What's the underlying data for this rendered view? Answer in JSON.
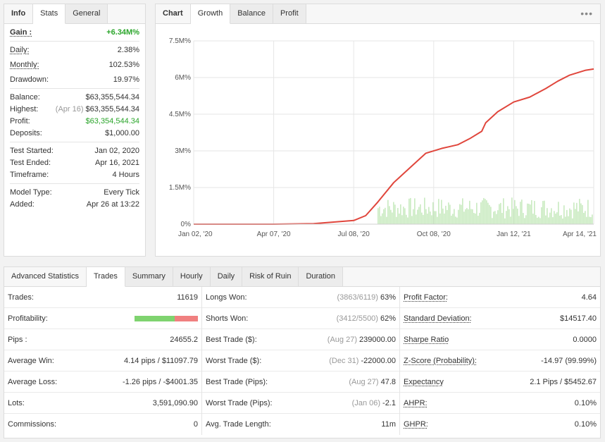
{
  "info": {
    "tabs": [
      "Info",
      "Stats",
      "General"
    ],
    "gain": {
      "label": "Gain :",
      "value": "+6.34M%"
    },
    "daily": {
      "label": "Daily:",
      "value": "2.38%"
    },
    "monthly": {
      "label": "Monthly:",
      "value": "102.53%"
    },
    "drawdown": {
      "label": "Drawdown:",
      "value": "19.97%"
    },
    "balance": {
      "label": "Balance:",
      "value": "$63,355,544.34"
    },
    "highest": {
      "label": "Highest:",
      "date": "(Apr 16)",
      "value": "$63,355,544.34"
    },
    "profit": {
      "label": "Profit:",
      "value": "$63,354,544.34"
    },
    "deposits": {
      "label": "Deposits:",
      "value": "$1,000.00"
    },
    "test_started": {
      "label": "Test Started:",
      "value": "Jan 02, 2020"
    },
    "test_ended": {
      "label": "Test Ended:",
      "value": "Apr 16, 2021"
    },
    "timeframe": {
      "label": "Timeframe:",
      "value": "4 Hours"
    },
    "model_type": {
      "label": "Model Type:",
      "value": "Every Tick"
    },
    "added": {
      "label": "Added:",
      "value": "Apr 26 at 13:22"
    }
  },
  "chart_panel": {
    "tabs": [
      "Chart",
      "Growth",
      "Balance",
      "Profit"
    ],
    "menu_glyph": "•••"
  },
  "chart_data": {
    "type": "line",
    "title": "",
    "y_ticks": [
      "0%",
      "1.5M%",
      "3M%",
      "4.5M%",
      "6M%",
      "7.5M%"
    ],
    "x_ticks": [
      "Jan 02, '20",
      "Apr 07, '20",
      "Jul 08, '20",
      "Oct 08, '20",
      "Jan 12, '21",
      "Apr 14, '21"
    ],
    "ylim": [
      0,
      7.5
    ],
    "y_unit": "M%",
    "series": [
      {
        "color": "#e0463c",
        "x": [
          0,
          0.2,
          0.3,
          0.4,
          0.43,
          0.46,
          0.5,
          0.54,
          0.58,
          0.62,
          0.66,
          0.69,
          0.72,
          0.73,
          0.76,
          0.8,
          0.84,
          0.88,
          0.91,
          0.94,
          0.96,
          0.98,
          1.0
        ],
        "y": [
          0,
          0,
          0.02,
          0.15,
          0.35,
          0.9,
          1.7,
          2.3,
          2.9,
          3.1,
          3.25,
          3.5,
          3.8,
          4.15,
          4.6,
          5.0,
          5.2,
          5.55,
          5.85,
          6.1,
          6.2,
          6.3,
          6.35
        ]
      }
    ],
    "volume_color": "#b7e3ac",
    "grid": true
  },
  "advanced": {
    "title": "Advanced Statistics",
    "tabs": [
      "Trades",
      "Summary",
      "Hourly",
      "Daily",
      "Risk of Ruin",
      "Duration"
    ],
    "col1": [
      {
        "label": "Trades:",
        "value": "11619"
      },
      {
        "label": "Profitability:",
        "won_fraction": 0.63
      },
      {
        "label": "Pips :",
        "value": "24655.2"
      },
      {
        "label": "Average Win:",
        "value": "4.14 pips / $11097.79"
      },
      {
        "label": "Average Loss:",
        "value": "-1.26 pips / -$4001.35"
      },
      {
        "label": "Lots:",
        "value": "3,591,090.90"
      },
      {
        "label": "Commissions:",
        "value": "0"
      }
    ],
    "col2": [
      {
        "label": "Longs Won:",
        "date": "(3863/6119)",
        "value": "63%"
      },
      {
        "label": "Shorts Won:",
        "date": "(3412/5500)",
        "value": "62%"
      },
      {
        "label": "Best Trade ($):",
        "date": "(Aug 27)",
        "value": "239000.00"
      },
      {
        "label": "Worst Trade ($):",
        "date": "(Dec 31)",
        "value": "-22000.00"
      },
      {
        "label": "Best Trade (Pips):",
        "date": "(Aug 27)",
        "value": "47.8"
      },
      {
        "label": "Worst Trade (Pips):",
        "date": "(Jan 06)",
        "value": "-2.1"
      },
      {
        "label": "Avg. Trade Length:",
        "date": "",
        "value": "11m"
      }
    ],
    "col3": [
      {
        "label": "Profit Factor:",
        "value": "4.64"
      },
      {
        "label": "Standard Deviation:",
        "value": "$14517.40"
      },
      {
        "label": "Sharpe Ratio",
        "value": "0.0000"
      },
      {
        "label": "Z-Score (Probability):",
        "value": "-14.97 (99.99%)"
      },
      {
        "label": "Expectancy",
        "value": "2.1 Pips / $5452.67"
      },
      {
        "label": "AHPR:",
        "value": "0.10%"
      },
      {
        "label": "GHPR:",
        "value": "0.10%"
      }
    ]
  }
}
